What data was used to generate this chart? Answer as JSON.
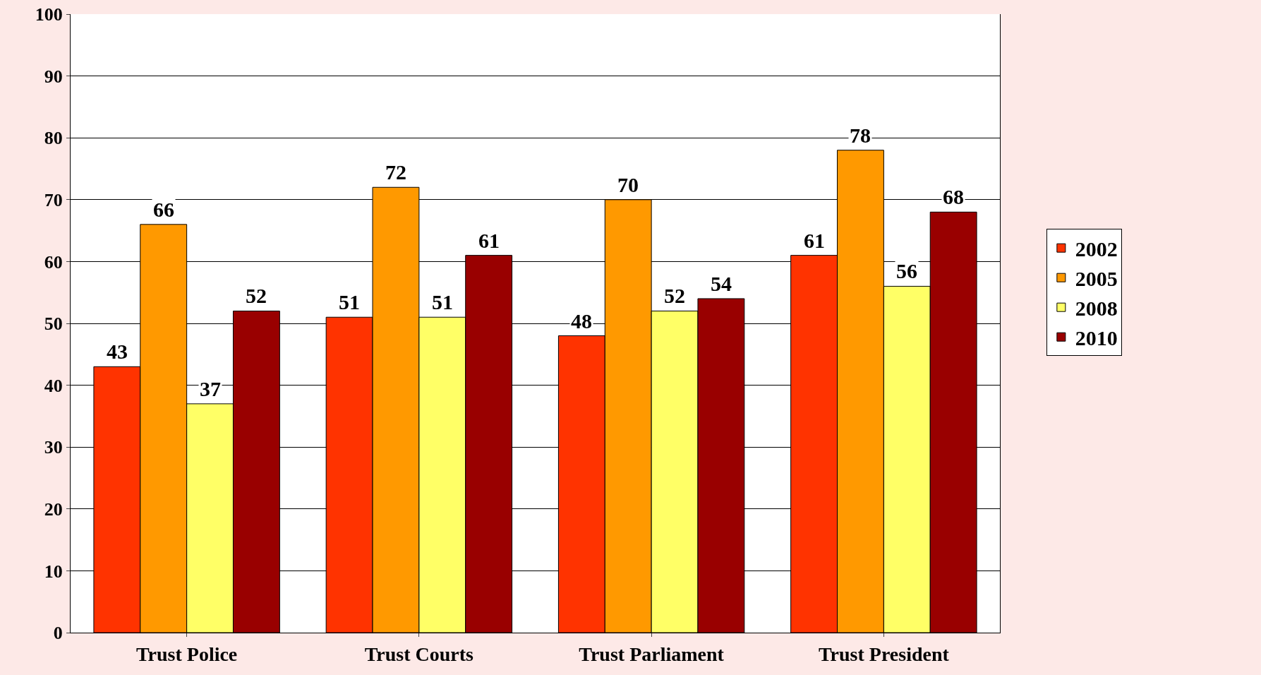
{
  "chart_data": {
    "type": "bar",
    "categories": [
      "Trust Police",
      "Trust Courts",
      "Trust Parliament",
      "Trust President"
    ],
    "series": [
      {
        "name": "2002",
        "color": "#ff3300",
        "values": [
          43,
          51,
          48,
          61
        ]
      },
      {
        "name": "2005",
        "color": "#ff9900",
        "values": [
          66,
          72,
          70,
          78
        ]
      },
      {
        "name": "2008",
        "color": "#ffff66",
        "values": [
          37,
          51,
          52,
          56
        ]
      },
      {
        "name": "2010",
        "color": "#990000",
        "values": [
          52,
          61,
          54,
          68
        ]
      }
    ],
    "ylim": [
      0,
      100
    ],
    "yticks": [
      0,
      10,
      20,
      30,
      40,
      50,
      60,
      70,
      80,
      90,
      100
    ],
    "grid": "y",
    "legend": "right",
    "data_labels": true
  }
}
